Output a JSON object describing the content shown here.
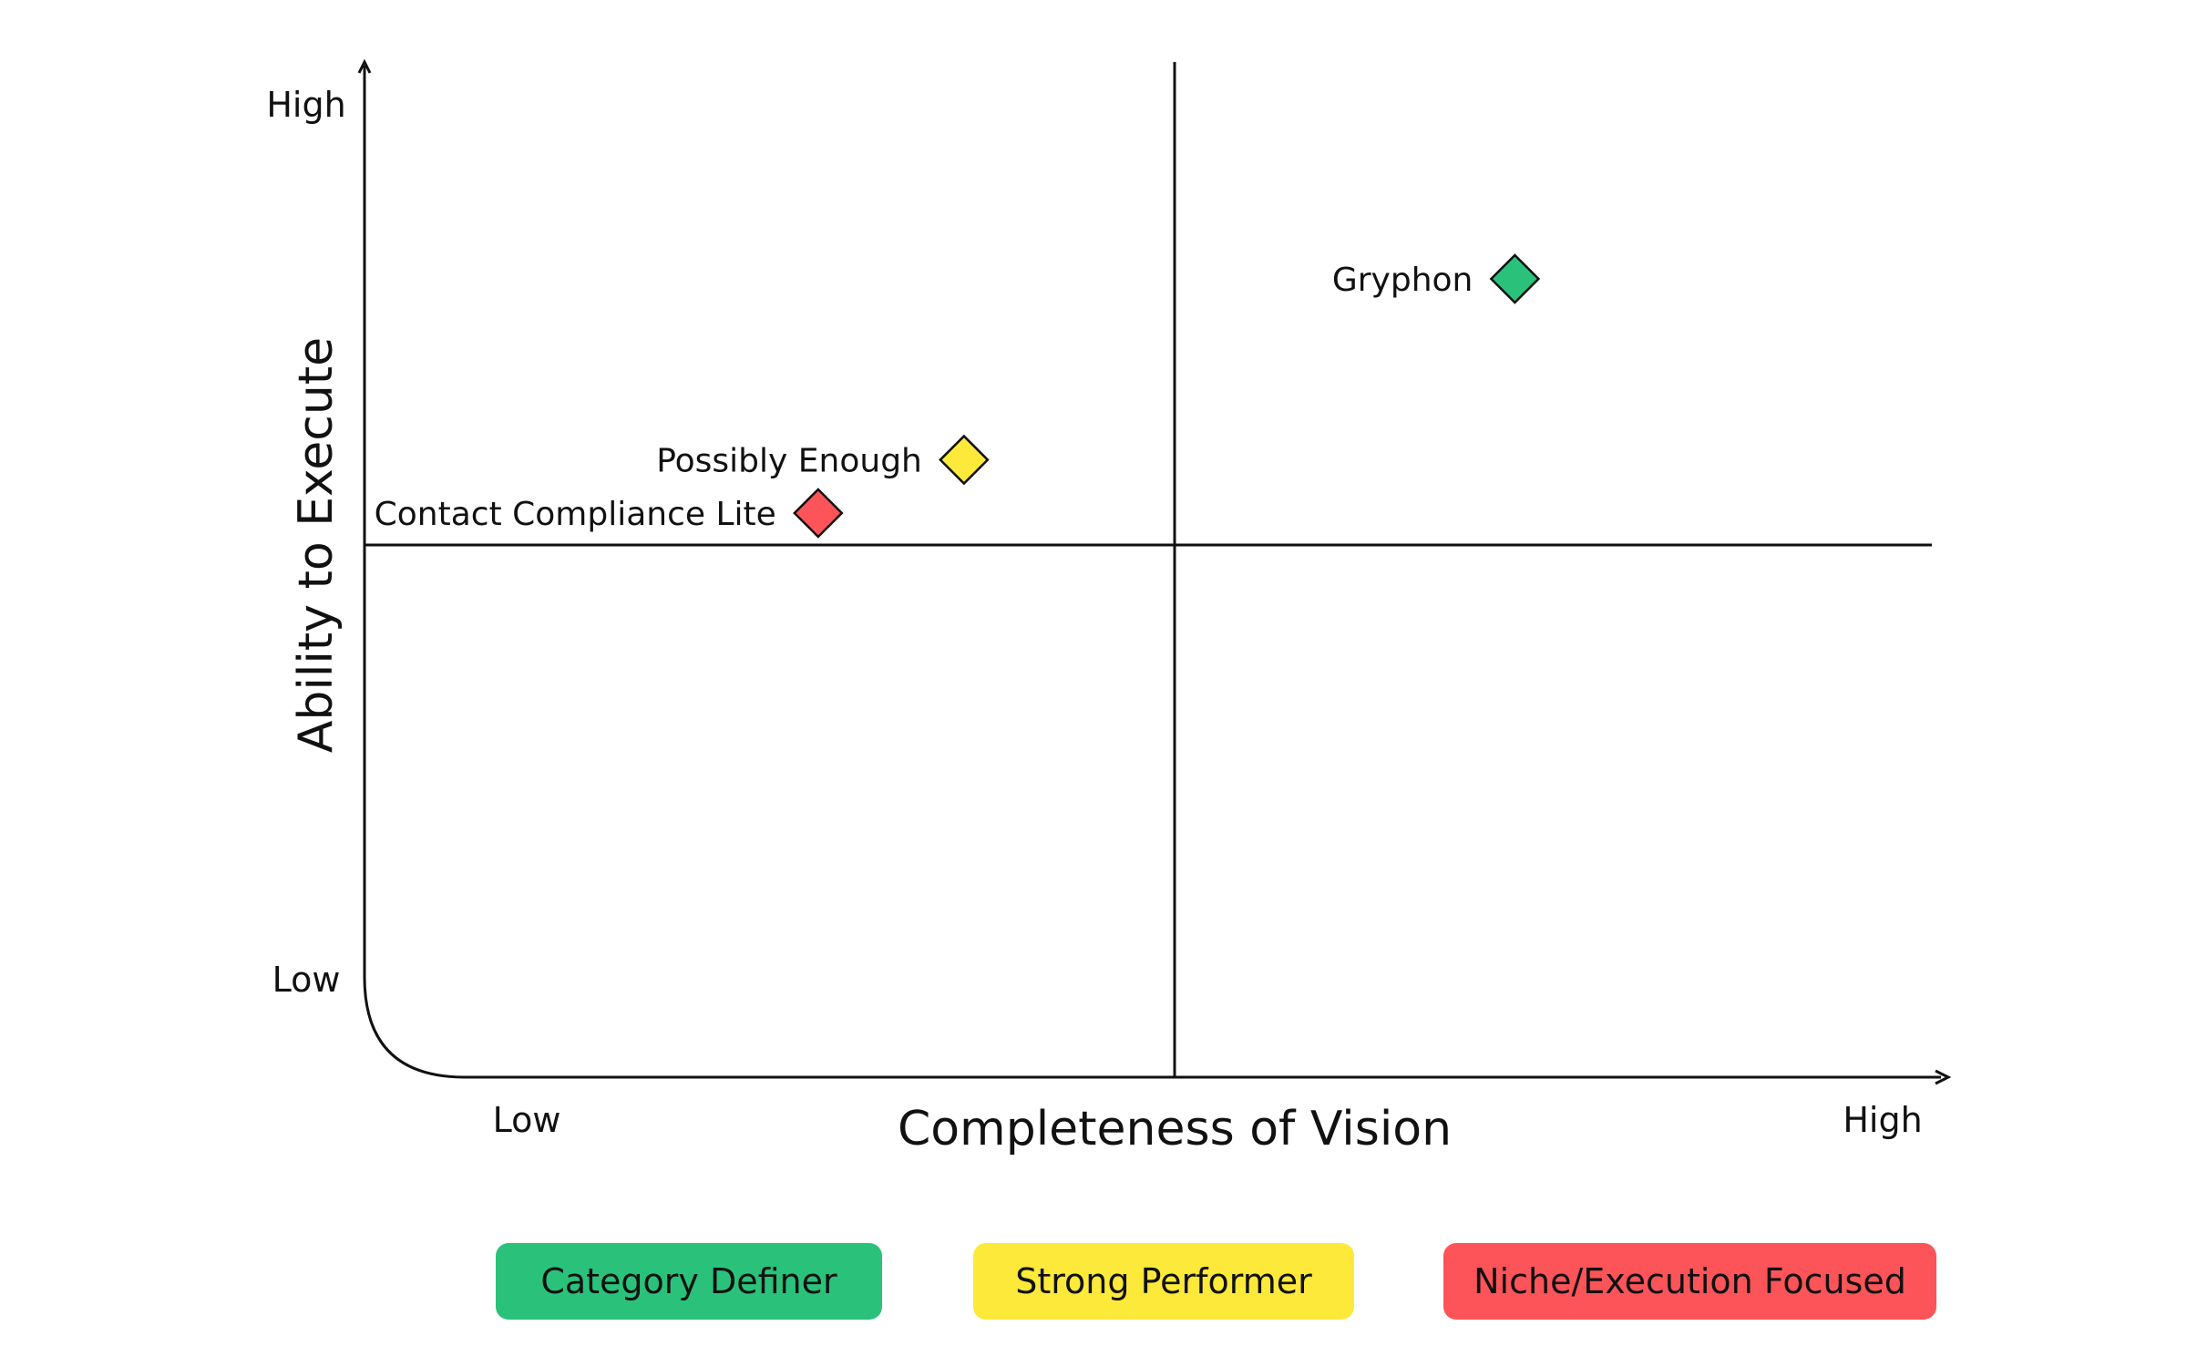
{
  "chart_data": {
    "type": "scatter",
    "subtype": "quadrant",
    "title": "",
    "xlabel": "Completeness of Vision",
    "ylabel": "Ability to Execute",
    "x_tick_labels": {
      "low": "Low",
      "high": "High"
    },
    "y_tick_labels": {
      "low": "Low",
      "high": "High"
    },
    "xlim": [
      0,
      100
    ],
    "ylim": [
      0,
      100
    ],
    "x_divider": 50,
    "y_divider": 50,
    "grid": false,
    "legend_position": "bottom",
    "points": [
      {
        "label": "Gryphon",
        "x": 71,
        "y": 75,
        "category": "Category Definer"
      },
      {
        "label": "Possibly Enough",
        "x": 37,
        "y": 58,
        "category": "Strong Performer"
      },
      {
        "label": "Contact Compliance Lite",
        "x": 28,
        "y": 53,
        "category": "Niche/Execution Focused"
      }
    ],
    "legend": [
      {
        "label": "Category Definer",
        "color": "#2ac27a"
      },
      {
        "label": "Strong Performer",
        "color": "#fde93a"
      },
      {
        "label": "Niche/Execution Focused",
        "color": "#fc5458"
      }
    ]
  }
}
